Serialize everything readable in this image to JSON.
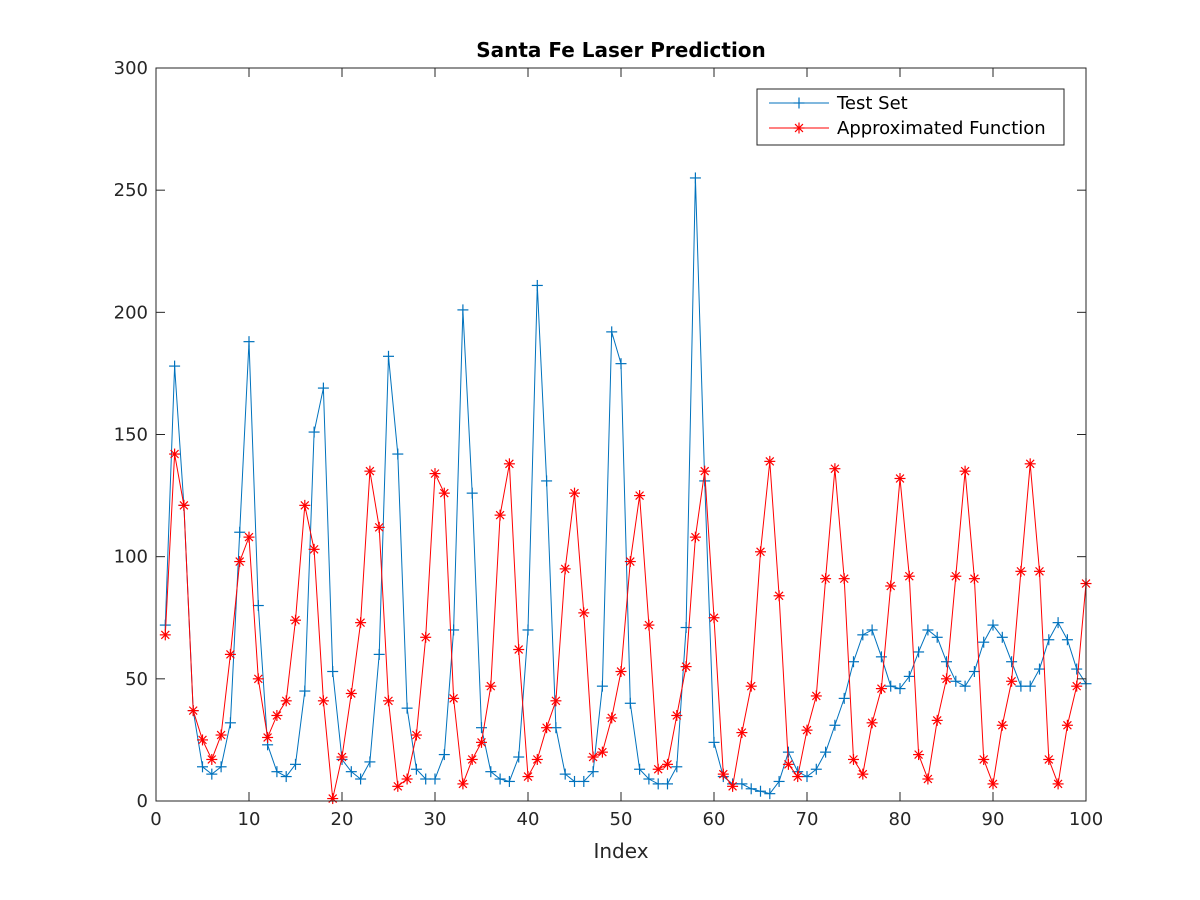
{
  "chart_data": {
    "type": "line",
    "title": "Santa Fe Laser Prediction",
    "xlabel": "Index",
    "ylabel": "",
    "xlim": [
      0,
      100
    ],
    "ylim": [
      0,
      300
    ],
    "xticks": [
      0,
      10,
      20,
      30,
      40,
      50,
      60,
      70,
      80,
      90,
      100
    ],
    "yticks": [
      0,
      50,
      100,
      150,
      200,
      250,
      300
    ],
    "grid": false,
    "legend_position": "top-right",
    "x": [
      1,
      2,
      3,
      4,
      5,
      6,
      7,
      8,
      9,
      10,
      11,
      12,
      13,
      14,
      15,
      16,
      17,
      18,
      19,
      20,
      21,
      22,
      23,
      24,
      25,
      26,
      27,
      28,
      29,
      30,
      31,
      32,
      33,
      34,
      35,
      36,
      37,
      38,
      39,
      40,
      41,
      42,
      43,
      44,
      45,
      46,
      47,
      48,
      49,
      50,
      51,
      52,
      53,
      54,
      55,
      56,
      57,
      58,
      59,
      60,
      61,
      62,
      63,
      64,
      65,
      66,
      67,
      68,
      69,
      70,
      71,
      72,
      73,
      74,
      75,
      76,
      77,
      78,
      79,
      80,
      81,
      82,
      83,
      84,
      85,
      86,
      87,
      88,
      89,
      90,
      91,
      92,
      93,
      94,
      95,
      96,
      97,
      98,
      99,
      100
    ],
    "series": [
      {
        "name": "Test Set",
        "color": "#0072BD",
        "marker": "plus",
        "values": [
          72,
          178,
          121,
          37,
          14,
          11,
          14,
          32,
          110,
          188,
          80,
          23,
          12,
          10,
          15,
          45,
          151,
          169,
          53,
          17,
          12,
          9,
          16,
          60,
          182,
          142,
          38,
          13,
          9,
          9,
          19,
          70,
          201,
          126,
          30,
          12,
          9,
          8,
          18,
          70,
          211,
          131,
          30,
          11,
          8,
          8,
          12,
          47,
          192,
          179,
          40,
          13,
          9,
          7,
          7,
          14,
          71,
          255,
          131,
          24,
          10,
          7,
          7,
          5,
          4,
          3,
          8,
          20,
          12,
          10,
          13,
          20,
          31,
          42,
          57,
          68,
          70,
          59,
          47,
          46,
          51,
          61,
          70,
          67,
          57,
          49,
          47,
          53,
          65,
          72,
          67,
          57,
          47,
          47,
          54,
          66,
          73,
          66,
          54,
          48
        ]
      },
      {
        "name": "Approximated Function",
        "color": "#FF0000",
        "marker": "asterisk",
        "values": [
          68,
          142,
          121,
          37,
          25,
          17,
          27,
          60,
          98,
          108,
          50,
          26,
          35,
          41,
          74,
          121,
          103,
          41,
          1,
          18,
          44,
          73,
          135,
          112,
          41,
          6,
          9,
          27,
          67,
          134,
          126,
          42,
          7,
          17,
          24,
          47,
          117,
          138,
          62,
          10,
          17,
          30,
          41,
          95,
          126,
          77,
          18,
          20,
          34,
          53,
          98,
          125,
          72,
          13,
          15,
          35,
          55,
          108,
          135,
          75,
          11,
          6,
          28,
          47,
          102,
          139,
          84,
          15,
          10,
          29,
          43,
          91,
          136,
          91,
          17,
          11,
          32,
          46,
          88,
          132,
          92,
          19,
          9,
          33,
          50,
          92,
          135,
          91,
          17,
          7,
          31,
          49,
          94,
          138,
          94,
          17,
          7,
          31,
          47,
          89
        ]
      }
    ]
  }
}
